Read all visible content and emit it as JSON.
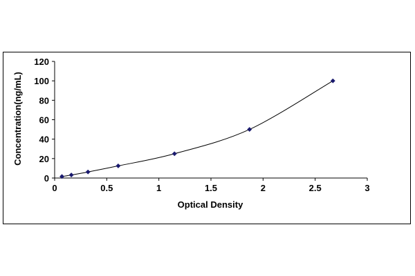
{
  "chart_data": {
    "type": "scatter",
    "title": "",
    "xlabel": "Optical Density",
    "ylabel": "Concentration(ng/mL)",
    "xlim": [
      0,
      3
    ],
    "ylim": [
      0,
      120
    ],
    "x_ticks": [
      0,
      0.5,
      1,
      1.5,
      2,
      2.5,
      3
    ],
    "y_ticks": [
      0,
      20,
      40,
      60,
      80,
      100,
      120
    ],
    "x_tick_labels": [
      "0",
      "0.5",
      "1",
      "1.5",
      "2",
      "2.5",
      "3"
    ],
    "y_tick_labels": [
      "0",
      "20",
      "40",
      "60",
      "80",
      "100",
      "120"
    ],
    "grid": false,
    "legend": "none",
    "series": [
      {
        "points": [
          {
            "x": 0.07,
            "y": 1.56
          },
          {
            "x": 0.16,
            "y": 3.13
          },
          {
            "x": 0.32,
            "y": 6.25
          },
          {
            "x": 0.61,
            "y": 12.5
          },
          {
            "x": 1.15,
            "y": 25
          },
          {
            "x": 1.87,
            "y": 50
          },
          {
            "x": 2.67,
            "y": 100
          }
        ],
        "trendline": "smooth curve",
        "marker": "diamond",
        "color": "#1a1a6e"
      }
    ]
  }
}
